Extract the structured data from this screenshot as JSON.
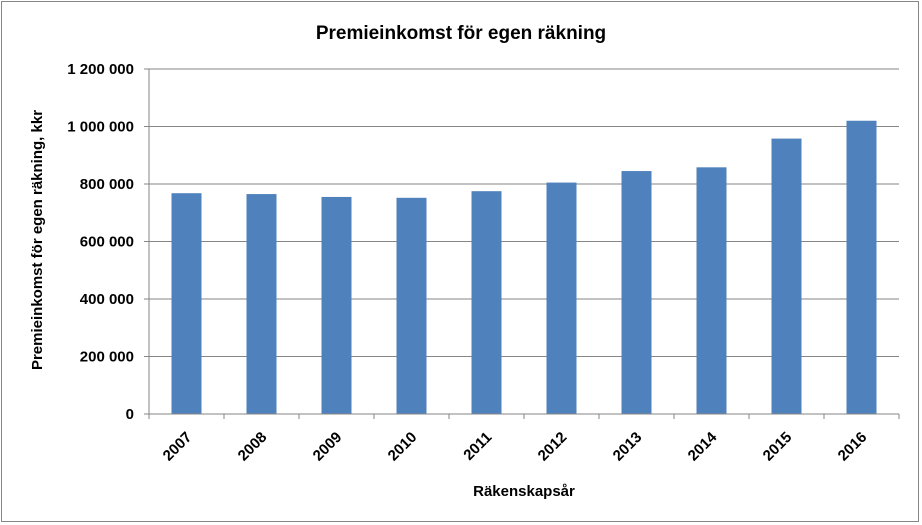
{
  "chart_data": {
    "type": "bar",
    "title": "Premieinkomst för egen räkning",
    "xlabel": "Räkenskapsår",
    "ylabel": "Premieinkomst för egen räkning, kkr",
    "categories": [
      "2007",
      "2008",
      "2009",
      "2010",
      "2011",
      "2012",
      "2013",
      "2014",
      "2015",
      "2016"
    ],
    "values": [
      768000,
      765000,
      755000,
      752000,
      775000,
      805000,
      845000,
      858000,
      958000,
      1020000
    ],
    "ylim": [
      0,
      1200000
    ],
    "yticks": [
      0,
      200000,
      400000,
      600000,
      800000,
      1000000,
      1200000
    ],
    "ytick_labels": [
      "0",
      "200 000",
      "400 000",
      "600 000",
      "800 000",
      "1 000 000",
      "1 200 000"
    ],
    "grid": true,
    "legend": "none",
    "bar_color": "#4F81BD",
    "grid_color": "#868686"
  }
}
